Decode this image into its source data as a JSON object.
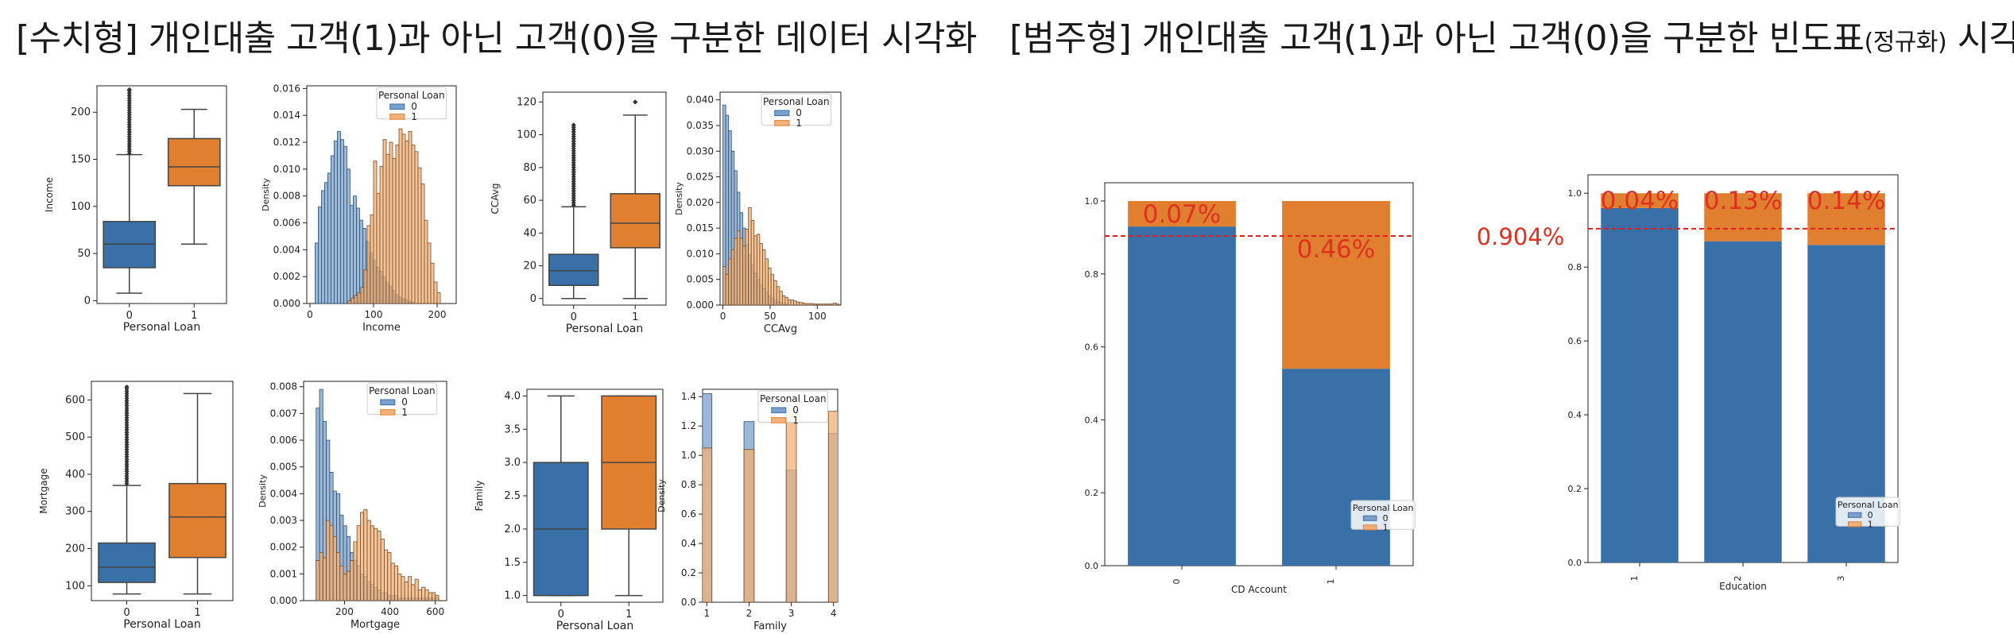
{
  "titles": {
    "numeric": "[수치형] 개인대출 고객(1)과 아닌 고객(0)을 구분한 데이터 시각화",
    "categorical_main": "[범주형] 개인대출 고객(1)과 아닌 고객(0)을 구분한 빈도표",
    "categorical_small": "(정규화)",
    "categorical_tail": " 시각화"
  },
  "colors": {
    "blue": "#3a70a8",
    "orange": "#e07f2f",
    "blue_hist": "#7aa0cb",
    "orange_hist": "#f0b27a",
    "overlap": "#6f7680",
    "ref_line": "#e02020",
    "annot": "#e03020"
  },
  "chart_data": [
    {
      "type": "box",
      "id": "income-box",
      "xlabel": "Personal Loan",
      "ylabel": "Income",
      "categories": [
        "0",
        "1"
      ],
      "ylim": [
        -3,
        228
      ],
      "yticks": [
        0,
        50,
        100,
        150,
        200
      ],
      "boxes": [
        {
          "whislo": 8,
          "q1": 35,
          "med": 60,
          "q3": 84,
          "whishi": 155,
          "outliers_from": 156,
          "outliers_to": 224
        },
        {
          "whislo": 60,
          "q1": 122,
          "med": 142,
          "q3": 172,
          "whishi": 203,
          "outliers_from": null,
          "outliers_to": null
        }
      ]
    },
    {
      "type": "histogram",
      "id": "income-hist",
      "xlabel": "Income",
      "ylabel": "Density",
      "xlim": [
        -5,
        230
      ],
      "ylim": [
        0,
        0.0162
      ],
      "xticks": [
        0,
        100,
        200
      ],
      "yticks": [
        0.0,
        0.002,
        0.004,
        0.006,
        0.008,
        0.01,
        0.012,
        0.014,
        0.016
      ],
      "ytick_labels": [
        "0.000",
        "0.002",
        "0.004",
        "0.006",
        "0.008",
        "0.010",
        "0.012",
        "0.014",
        "0.016"
      ],
      "legend": {
        "title": "Personal Loan",
        "entries": [
          "0",
          "1"
        ],
        "placement": "top-right"
      },
      "series": [
        {
          "name": "0",
          "x0": 8,
          "bin_width": 5,
          "values": [
            0.0045,
            0.0072,
            0.0084,
            0.009,
            0.0097,
            0.011,
            0.0121,
            0.0128,
            0.0122,
            0.0117,
            0.01,
            0.0073,
            0.008,
            0.0071,
            0.0062,
            0.0056,
            0.0046,
            0.0038,
            0.0032,
            0.0027,
            0.0024,
            0.002,
            0.0016,
            0.0013,
            0.001,
            0.0007,
            0.0005,
            0.0004,
            0.0003,
            0.0002,
            0.0001
          ]
        },
        {
          "name": "1",
          "x0": 60,
          "bin_width": 5,
          "values": [
            0.0002,
            0.0004,
            0.0006,
            0.0008,
            0.0012,
            0.0025,
            0.0058,
            0.0066,
            0.0106,
            0.0082,
            0.0102,
            0.0122,
            0.0111,
            0.012,
            0.0108,
            0.0118,
            0.013,
            0.0126,
            0.0121,
            0.0128,
            0.0118,
            0.0113,
            0.0101,
            0.0089,
            0.0062,
            0.0045,
            0.003,
            0.0016,
            0.0008
          ]
        }
      ]
    },
    {
      "type": "box",
      "id": "ccavg-box",
      "xlabel": "Personal Loan",
      "ylabel": "CCAvg",
      "categories": [
        "0",
        "1"
      ],
      "ylim": [
        -4,
        126
      ],
      "yticks": [
        0,
        20,
        40,
        60,
        80,
        100,
        120
      ],
      "boxes": [
        {
          "whislo": 0,
          "q1": 8,
          "med": 17,
          "q3": 27,
          "whishi": 56,
          "outliers_from": 57,
          "outliers_to": 106
        },
        {
          "whislo": 0,
          "q1": 31,
          "med": 46,
          "q3": 64,
          "whishi": 112,
          "outliers_from": 120,
          "outliers_to": 120
        }
      ]
    },
    {
      "type": "histogram",
      "id": "ccavg-hist",
      "xlabel": "CCAvg",
      "ylabel": "Density",
      "xlim": [
        -3,
        125
      ],
      "ylim": [
        0,
        0.0415
      ],
      "xticks": [
        0,
        50,
        100
      ],
      "yticks": [
        0.0,
        0.005,
        0.01,
        0.015,
        0.02,
        0.025,
        0.03,
        0.035,
        0.04
      ],
      "ytick_labels": [
        "0.000",
        "0.005",
        "0.010",
        "0.015",
        "0.020",
        "0.025",
        "0.030",
        "0.035",
        "0.040"
      ],
      "legend": {
        "title": "Personal Loan",
        "entries": [
          "0",
          "1"
        ],
        "placement": "top-right"
      },
      "series": [
        {
          "name": "0",
          "x0": 0,
          "bin_width": 3,
          "values": [
            0.039,
            0.037,
            0.034,
            0.03,
            0.0262,
            0.022,
            0.018,
            0.015,
            0.0118,
            0.0098,
            0.008,
            0.0062,
            0.005,
            0.004,
            0.0032,
            0.0025,
            0.0018,
            0.0014,
            0.001,
            0.0007,
            0.0005,
            0.0003,
            0.0002
          ]
        },
        {
          "name": "1",
          "x0": 0,
          "bin_width": 3,
          "values": [
            0.0075,
            0.006,
            0.009,
            0.0108,
            0.013,
            0.0145,
            0.013,
            0.0115,
            0.0148,
            0.019,
            0.0165,
            0.0135,
            0.0138,
            0.012,
            0.0108,
            0.009,
            0.0072,
            0.006,
            0.0048,
            0.0036,
            0.0027,
            0.0018,
            0.0015,
            0.001,
            0.001,
            0.0008,
            0.0006,
            0.0005,
            0.0004,
            0.0003,
            0.0003,
            0.0003,
            0.0002,
            0.0002,
            0.0002,
            0.0002,
            0.0002,
            0.0002,
            0.0002,
            0.0004,
            0.0002
          ]
        }
      ]
    },
    {
      "type": "box",
      "id": "mortgage-box",
      "xlabel": "Personal Loan",
      "ylabel": "Mortgage",
      "categories": [
        "0",
        "1"
      ],
      "ylim": [
        60,
        650
      ],
      "yticks": [
        100,
        200,
        300,
        400,
        500,
        600
      ],
      "boxes": [
        {
          "whislo": 78,
          "q1": 109,
          "med": 150,
          "q3": 215,
          "whishi": 370,
          "outliers_from": 375,
          "outliers_to": 635
        },
        {
          "whislo": 78,
          "q1": 176,
          "med": 285,
          "q3": 375,
          "whishi": 617,
          "outliers_from": null,
          "outliers_to": null
        }
      ]
    },
    {
      "type": "histogram",
      "id": "mortgage-hist",
      "xlabel": "Mortgage",
      "ylabel": "Density",
      "xlim": [
        20,
        650
      ],
      "ylim": [
        0,
        0.0082
      ],
      "xticks": [
        200,
        400,
        600
      ],
      "yticks": [
        0.0,
        0.001,
        0.002,
        0.003,
        0.004,
        0.005,
        0.006,
        0.007,
        0.008
      ],
      "ytick_labels": [
        "0.000",
        "0.001",
        "0.002",
        "0.003",
        "0.004",
        "0.005",
        "0.006",
        "0.007",
        "0.008"
      ],
      "legend": {
        "title": "Personal Loan",
        "entries": [
          "0",
          "1"
        ],
        "placement": "top-right"
      },
      "series": [
        {
          "name": "0",
          "x0": 75,
          "bin_width": 15,
          "values": [
            0.0072,
            0.0079,
            0.0067,
            0.006,
            0.0048,
            0.0041,
            0.004,
            0.0032,
            0.0028,
            0.0024,
            0.0018,
            0.0015,
            0.0013,
            0.001,
            0.0009,
            0.0007,
            0.0006,
            0.0005,
            0.0004,
            0.0003,
            0.0003,
            0.0002,
            0.0002,
            0.0002,
            0.0001,
            0.0001,
            0.0001,
            0.0001,
            0.0001,
            0.0001,
            0.0001,
            0.0001,
            0.0001,
            0.0001,
            0.0001,
            0.0001
          ]
        },
        {
          "name": "1",
          "x0": 75,
          "bin_width": 15,
          "values": [
            0.0015,
            0.0018,
            0.0016,
            0.003,
            0.0028,
            0.0024,
            0.0018,
            0.0013,
            0.001,
            0.0011,
            0.0015,
            0.0022,
            0.0028,
            0.0033,
            0.0034,
            0.003,
            0.0028,
            0.0027,
            0.0026,
            0.0023,
            0.0019,
            0.0018,
            0.0014,
            0.0013,
            0.001,
            0.0009,
            0.0007,
            0.0009,
            0.0006,
            0.0008,
            0.0004,
            0.0005,
            0.0004,
            0.0003,
            0.0003,
            0.0002
          ]
        }
      ]
    },
    {
      "type": "box",
      "id": "family-box",
      "xlabel": "Personal Loan",
      "ylabel": "Family",
      "categories": [
        "0",
        "1"
      ],
      "ylim": [
        0.9,
        4.1
      ],
      "yticks": [
        1.0,
        1.5,
        2.0,
        2.5,
        3.0,
        3.5,
        4.0
      ],
      "ytick_labels": [
        "1.0",
        "1.5",
        "2.0",
        "2.5",
        "3.0",
        "3.5",
        "4.0"
      ],
      "boxes": [
        {
          "whislo": 1.0,
          "q1": 1.0,
          "med": 2.0,
          "q3": 3.0,
          "whishi": 4.0,
          "outliers_from": null,
          "outliers_to": null
        },
        {
          "whislo": 1.0,
          "q1": 2.0,
          "med": 3.0,
          "q3": 4.0,
          "whishi": 4.0,
          "outliers_from": null,
          "outliers_to": null
        }
      ]
    },
    {
      "type": "histogram",
      "id": "family-hist",
      "xlabel": "Family",
      "ylabel": "Density",
      "xlim": [
        0.9,
        4.1
      ],
      "ylim": [
        0,
        1.45
      ],
      "xticks": [
        1,
        2,
        3,
        4
      ],
      "yticks": [
        0.0,
        0.2,
        0.4,
        0.6,
        0.8,
        1.0,
        1.2,
        1.4
      ],
      "ytick_labels": [
        "0.0",
        "0.2",
        "0.4",
        "0.6",
        "0.8",
        "1.0",
        "1.2",
        "1.4"
      ],
      "legend": {
        "title": "Personal Loan",
        "entries": [
          "0",
          "1"
        ],
        "placement": "top-right"
      },
      "series": [
        {
          "name": "0",
          "x": [
            1,
            2,
            3,
            4
          ],
          "values": [
            1.42,
            1.23,
            0.9,
            1.15
          ]
        },
        {
          "name": "1",
          "x": [
            1,
            2,
            3,
            4
          ],
          "values": [
            1.05,
            1.04,
            1.31,
            1.3
          ]
        }
      ]
    },
    {
      "type": "stacked_bar",
      "id": "cd-account",
      "xlabel": "CD Account",
      "ylabel": "",
      "categories": [
        "0",
        "1"
      ],
      "ylim": [
        0,
        1.05
      ],
      "yticks": [
        0.0,
        0.2,
        0.4,
        0.6,
        0.8,
        1.0
      ],
      "ytick_labels": [
        "0.0",
        "0.2",
        "0.4",
        "0.6",
        "0.8",
        "1.0"
      ],
      "series": [
        {
          "name": "0",
          "values": [
            0.93,
            0.54
          ]
        },
        {
          "name": "1",
          "values": [
            0.07,
            0.46
          ]
        }
      ],
      "annotations": [
        "0.07%",
        "0.46%"
      ],
      "reference_line": 0.904,
      "reference_label": "0.904%",
      "legend": {
        "title": "Personal Loan",
        "entries": [
          "0",
          "1"
        ],
        "placement": "bottom-right"
      }
    },
    {
      "type": "stacked_bar",
      "id": "education",
      "xlabel": "Education",
      "ylabel": "",
      "categories": [
        "1",
        "2",
        "3"
      ],
      "ylim": [
        0,
        1.05
      ],
      "yticks": [
        0.0,
        0.2,
        0.4,
        0.6,
        0.8,
        1.0
      ],
      "ytick_labels": [
        "0.0",
        "0.2",
        "0.4",
        "0.6",
        "0.8",
        "1.0"
      ],
      "series": [
        {
          "name": "0",
          "values": [
            0.96,
            0.87,
            0.86
          ]
        },
        {
          "name": "1",
          "values": [
            0.04,
            0.13,
            0.14
          ]
        }
      ],
      "annotations": [
        "0.04%",
        "0.13%",
        "0.14%"
      ],
      "reference_line": 0.904,
      "legend": {
        "title": "Personal Loan",
        "entries": [
          "0",
          "1"
        ],
        "placement": "bottom-right"
      }
    }
  ]
}
